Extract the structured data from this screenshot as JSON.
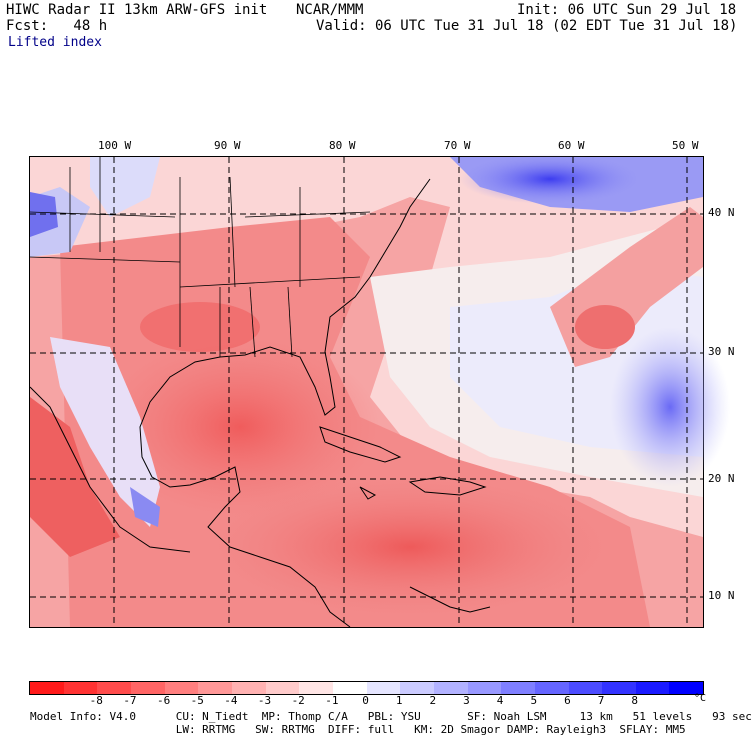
{
  "header": {
    "model": "HIWC Radar II 13km ARW-GFS init",
    "center": "NCAR/MMM",
    "init": "Init: 06 UTC Sun 29 Jul 18",
    "fcst": "Fcst:   48 h",
    "valid": "Valid: 06 UTC Tue 31 Jul 18 (02 EDT Tue 31 Jul 18)",
    "field": "Lifted index"
  },
  "map": {
    "lon_labels": [
      "100 W",
      "90 W",
      "80 W",
      "70 W",
      "60 W",
      "50 W"
    ],
    "lat_labels": [
      "40 N",
      "30 N",
      "20 N",
      "10 N"
    ]
  },
  "colorbar": {
    "labels": [
      "-8",
      "-7",
      "-6",
      "-5",
      "-4",
      "-3",
      "-2",
      "-1",
      "0",
      "1",
      "2",
      "3",
      "4",
      "5",
      "6",
      "7",
      "8"
    ],
    "unit": "°C",
    "colors": [
      "#ff1a1a",
      "#ff3333",
      "#ff4c4c",
      "#ff6565",
      "#ff7f7f",
      "#ff9898",
      "#ffb2b2",
      "#ffcbcb",
      "#ffe5e5",
      "#ffffff",
      "#e5e5ff",
      "#cbcbff",
      "#b2b2ff",
      "#9898ff",
      "#7f7fff",
      "#6565ff",
      "#4c4cff",
      "#3333ff",
      "#1a1aff",
      "#0000ff"
    ]
  },
  "model_info": {
    "line1": "Model Info: V4.0      CU: N_Tiedt  MP: Thomp C/A   PBL: YSU       SF: Noah LSM     13 km   51 levels   93 sec",
    "line2": "                      LW: RRTMG   SW: RRTMG  DIFF: full   KM: 2D Smagor DAMP: Rayleigh3  SFLAY: MM5"
  }
}
